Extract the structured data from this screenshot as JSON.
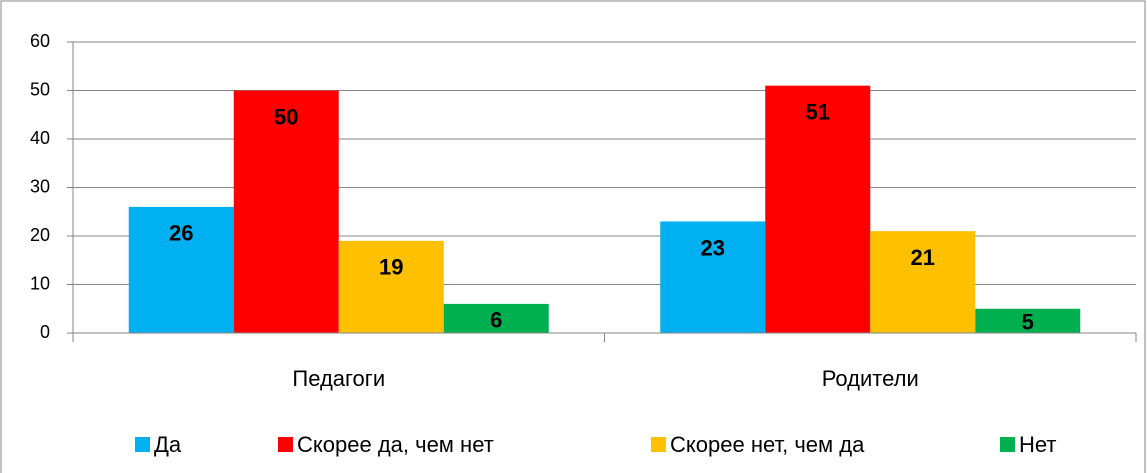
{
  "chart_data": {
    "type": "bar",
    "categories": [
      "Педагоги",
      "Родители"
    ],
    "series": [
      {
        "name": "Да",
        "color": "#00b0f0",
        "values": [
          26,
          23
        ]
      },
      {
        "name": "Скорее да, чем нет",
        "color": "#ff0000",
        "values": [
          50,
          51
        ]
      },
      {
        "name": "Скорее нет, чем да",
        "color": "#ffc000",
        "values": [
          19,
          21
        ]
      },
      {
        "name": "Нет",
        "color": "#00b050",
        "values": [
          6,
          5
        ]
      }
    ],
    "ylim": [
      0,
      60
    ],
    "yticks": [
      0,
      10,
      20,
      30,
      40,
      50,
      60
    ],
    "grid": true,
    "legend": "bottom"
  }
}
